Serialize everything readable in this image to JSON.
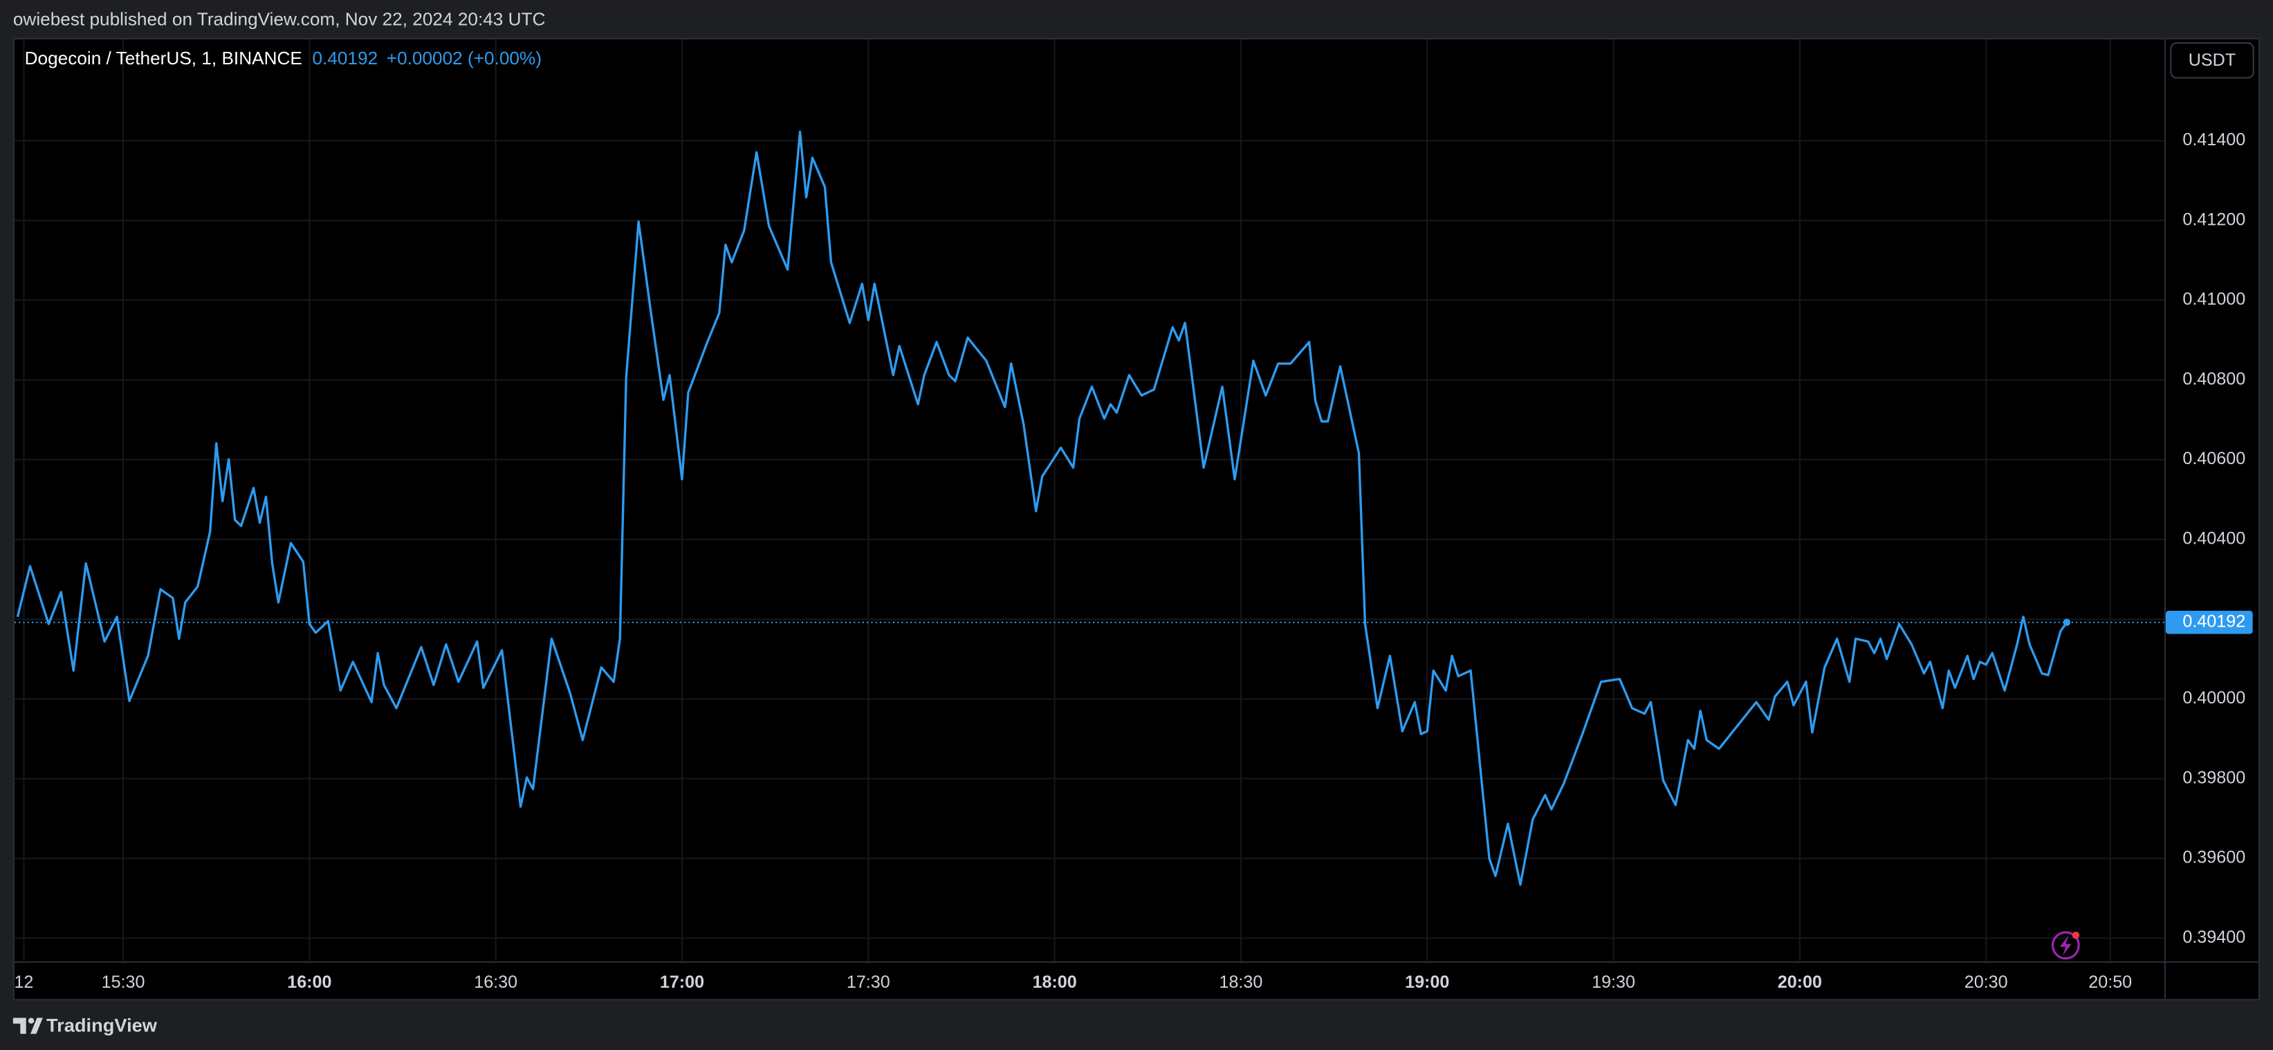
{
  "header": {
    "published": "owiebest published on TradingView.com, Nov 22, 2024 20:43 UTC"
  },
  "footer": {
    "brand": "TradingView"
  },
  "chart_data": {
    "type": "line",
    "title": "Dogecoin / TetherUS, 1, BINANCE",
    "price_change": "+0.00002 (+0.00%)",
    "last_price": 0.40192,
    "y_axis_label": "USDT",
    "color": "#2e9bf0",
    "grid": true,
    "xlim": [
      912.5,
      1258.7
    ],
    "ylim": [
      0.39342,
      0.41654
    ],
    "xticks": [
      {
        "value": 914,
        "label": "12"
      },
      {
        "value": 930,
        "label": "15:30"
      },
      {
        "value": 960,
        "label": "16:00"
      },
      {
        "value": 990,
        "label": "16:30"
      },
      {
        "value": 1020,
        "label": "17:00"
      },
      {
        "value": 1050,
        "label": "17:30"
      },
      {
        "value": 1080,
        "label": "18:00"
      },
      {
        "value": 1110,
        "label": "18:30"
      },
      {
        "value": 1140,
        "label": "19:00"
      },
      {
        "value": 1170,
        "label": "19:30"
      },
      {
        "value": 1200,
        "label": "20:00"
      },
      {
        "value": 1230,
        "label": "20:30"
      },
      {
        "value": 1250,
        "label": "20:50"
      }
    ],
    "yticks": [
      {
        "value": 0.394,
        "label": "0.39400"
      },
      {
        "value": 0.396,
        "label": "0.39600"
      },
      {
        "value": 0.398,
        "label": "0.39800"
      },
      {
        "value": 0.4,
        "label": "0.40000"
      },
      {
        "value": 0.402,
        "label": "0.40200"
      },
      {
        "value": 0.404,
        "label": "0.40400"
      },
      {
        "value": 0.406,
        "label": "0.40600"
      },
      {
        "value": 0.408,
        "label": "0.40800"
      },
      {
        "value": 0.41,
        "label": "0.41000"
      },
      {
        "value": 0.412,
        "label": "0.41200"
      },
      {
        "value": 0.414,
        "label": "0.41400"
      }
    ],
    "x": [
      913,
      915,
      918,
      920,
      922,
      924,
      927,
      929,
      931,
      934,
      936,
      938,
      939,
      940,
      942,
      944,
      945,
      946,
      947,
      948,
      949,
      951,
      952,
      953,
      954,
      955,
      957,
      959,
      960,
      961,
      963,
      965,
      967,
      970,
      971,
      972,
      974,
      978,
      980,
      982,
      984,
      987,
      988,
      991,
      994,
      995,
      996,
      999,
      1002,
      1004,
      1007,
      1009,
      1010,
      1011,
      1013,
      1015,
      1017,
      1018,
      1020,
      1021,
      1024,
      1026,
      1027,
      1028,
      1030,
      1032,
      1034,
      1037,
      1039,
      1040,
      1041,
      1043,
      1044,
      1047,
      1049,
      1050,
      1051,
      1054,
      1055,
      1058,
      1059,
      1061,
      1063,
      1064,
      1066,
      1069,
      1072,
      1073,
      1075,
      1077,
      1078,
      1081,
      1083,
      1084,
      1086,
      1088,
      1089,
      1090,
      1092,
      1094,
      1096,
      1099,
      1100,
      1101,
      1104,
      1107,
      1109,
      1112,
      1114,
      1116,
      1118,
      1121,
      1122,
      1123,
      1124,
      1126,
      1129,
      1130,
      1132,
      1134,
      1136,
      1138,
      1139,
      1140,
      1141,
      1143,
      1144,
      1145,
      1147,
      1150,
      1151,
      1153,
      1155,
      1157,
      1159,
      1160,
      1162,
      1165,
      1168,
      1171,
      1173,
      1175,
      1176,
      1178,
      1180,
      1182,
      1183,
      1184,
      1185,
      1187,
      1193,
      1195,
      1196,
      1198,
      1199,
      1201,
      1202,
      1204,
      1206,
      1208,
      1209,
      1211,
      1212,
      1213,
      1214,
      1216,
      1218,
      1220,
      1221,
      1223,
      1224,
      1225,
      1227,
      1228,
      1229,
      1230,
      1231,
      1233,
      1235,
      1236,
      1237,
      1239,
      1240,
      1242,
      1243
    ],
    "values": [
      0.40206,
      0.40333,
      0.40188,
      0.40268,
      0.40071,
      0.4034,
      0.40144,
      0.40206,
      0.39995,
      0.40108,
      0.40275,
      0.40253,
      0.40151,
      0.40242,
      0.40282,
      0.4042,
      0.40641,
      0.40496,
      0.40601,
      0.40449,
      0.40434,
      0.40529,
      0.40442,
      0.40507,
      0.4034,
      0.40242,
      0.40391,
      0.40344,
      0.40188,
      0.40166,
      0.40195,
      0.40021,
      0.40093,
      0.39992,
      0.40115,
      0.40035,
      0.39977,
      0.4013,
      0.40035,
      0.40137,
      0.40043,
      0.40144,
      0.40028,
      0.40122,
      0.3973,
      0.39803,
      0.39774,
      0.40151,
      0.40013,
      0.39897,
      0.40079,
      0.40043,
      0.40151,
      0.40805,
      0.41197,
      0.40968,
      0.4075,
      0.40812,
      0.40551,
      0.40768,
      0.40892,
      0.40968,
      0.41139,
      0.41095,
      0.41175,
      0.41371,
      0.41186,
      0.41077,
      0.41422,
      0.41258,
      0.41357,
      0.41284,
      0.41095,
      0.40943,
      0.41041,
      0.4095,
      0.41041,
      0.40812,
      0.40885,
      0.40739,
      0.40812,
      0.40895,
      0.40812,
      0.40797,
      0.40906,
      0.40848,
      0.40732,
      0.40841,
      0.40689,
      0.40471,
      0.40558,
      0.4063,
      0.4058,
      0.40703,
      0.40783,
      0.40703,
      0.40739,
      0.40718,
      0.40812,
      0.40761,
      0.40776,
      0.40932,
      0.40899,
      0.40943,
      0.4058,
      0.40783,
      0.40551,
      0.40848,
      0.40761,
      0.40841,
      0.40841,
      0.40895,
      0.40747,
      0.40696,
      0.40696,
      0.40834,
      0.40616,
      0.40188,
      0.39977,
      0.40108,
      0.39919,
      0.39992,
      0.39912,
      0.39919,
      0.40071,
      0.40021,
      0.40108,
      0.40057,
      0.40071,
      0.396,
      0.39556,
      0.39687,
      0.39534,
      0.39698,
      0.39759,
      0.39723,
      0.39788,
      0.39912,
      0.40043,
      0.4005,
      0.39977,
      0.39963,
      0.39992,
      0.39796,
      0.39734,
      0.39897,
      0.39875,
      0.3997,
      0.39897,
      0.39875,
      0.39992,
      0.39948,
      0.40006,
      0.40043,
      0.39984,
      0.40043,
      0.39916,
      0.40079,
      0.40151,
      0.40043,
      0.40151,
      0.40144,
      0.40115,
      0.40151,
      0.401,
      0.40188,
      0.40137,
      0.40064,
      0.40093,
      0.39977,
      0.40071,
      0.40028,
      0.40108,
      0.4005,
      0.40093,
      0.40086,
      0.40115,
      0.40021,
      0.40137,
      0.40206,
      0.40137,
      0.40064,
      0.4006,
      0.4017,
      0.40192
    ]
  }
}
